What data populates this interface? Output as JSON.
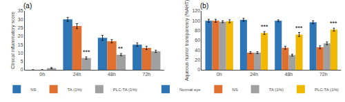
{
  "chart_data": [
    {
      "type": "bar",
      "title": "(a)",
      "ylabel": "Clinical inflammatory score",
      "categories": [
        "0h",
        "24h",
        "48h",
        "72h"
      ],
      "series": [
        {
          "name": "NS",
          "color": "#2e75b6",
          "values": [
            0,
            30,
            19,
            15
          ],
          "errors": [
            0,
            1.2,
            1.5,
            1.0
          ]
        },
        {
          "name": "TA (1%)",
          "color": "#e07030",
          "values": [
            0,
            26,
            17,
            13
          ],
          "errors": [
            0,
            1.5,
            1.0,
            1.0
          ]
        },
        {
          "name": "PLC-TA (1%)",
          "color": "#a0a0a0",
          "values": [
            1,
            7,
            9,
            11
          ],
          "errors": [
            0.3,
            0.7,
            0.7,
            0.7
          ]
        }
      ],
      "ylim": [
        0,
        35
      ],
      "yticks": [
        0,
        5,
        10,
        15,
        20,
        25,
        30,
        35
      ],
      "annotations": [
        {
          "text": "***",
          "category": "24h",
          "series": "PLC-TA (1%)"
        },
        {
          "text": "**",
          "category": "48h",
          "series": "PLC-TA (1%)"
        }
      ],
      "grid": false,
      "legend": "bottom"
    },
    {
      "type": "bar",
      "title": "(b)",
      "ylabel": "Aqueous humor transparency (%AHT)",
      "categories": [
        "0h",
        "24h",
        "48h",
        "72h"
      ],
      "series": [
        {
          "name": "Normal eye",
          "color": "#2e75b6",
          "values": [
            100,
            102,
            100,
            97
          ],
          "errors": [
            3,
            3,
            2,
            3
          ]
        },
        {
          "name": "NS",
          "color": "#e07030",
          "values": [
            100,
            35,
            45,
            46
          ],
          "errors": [
            3,
            2,
            3,
            3
          ]
        },
        {
          "name": "TA (1%)",
          "color": "#a0a0a0",
          "values": [
            98,
            35,
            30,
            54
          ],
          "errors": [
            2,
            2,
            2,
            3
          ]
        },
        {
          "name": "PLC-TA (1%)",
          "color": "#f0b800",
          "values": [
            99,
            75,
            72,
            82
          ],
          "errors": [
            3,
            3,
            4,
            3
          ]
        }
      ],
      "ylim": [
        0,
        120
      ],
      "yticks": [
        0,
        20,
        40,
        60,
        80,
        100,
        120
      ],
      "annotations": [
        {
          "text": "***",
          "category": "24h",
          "series": "PLC-TA (1%)"
        },
        {
          "text": "***",
          "category": "48h",
          "series": "PLC-TA (1%)"
        },
        {
          "text": "***",
          "category": "72h",
          "series": "PLC-TA (1%)"
        }
      ],
      "grid": false,
      "legend": "bottom"
    }
  ]
}
